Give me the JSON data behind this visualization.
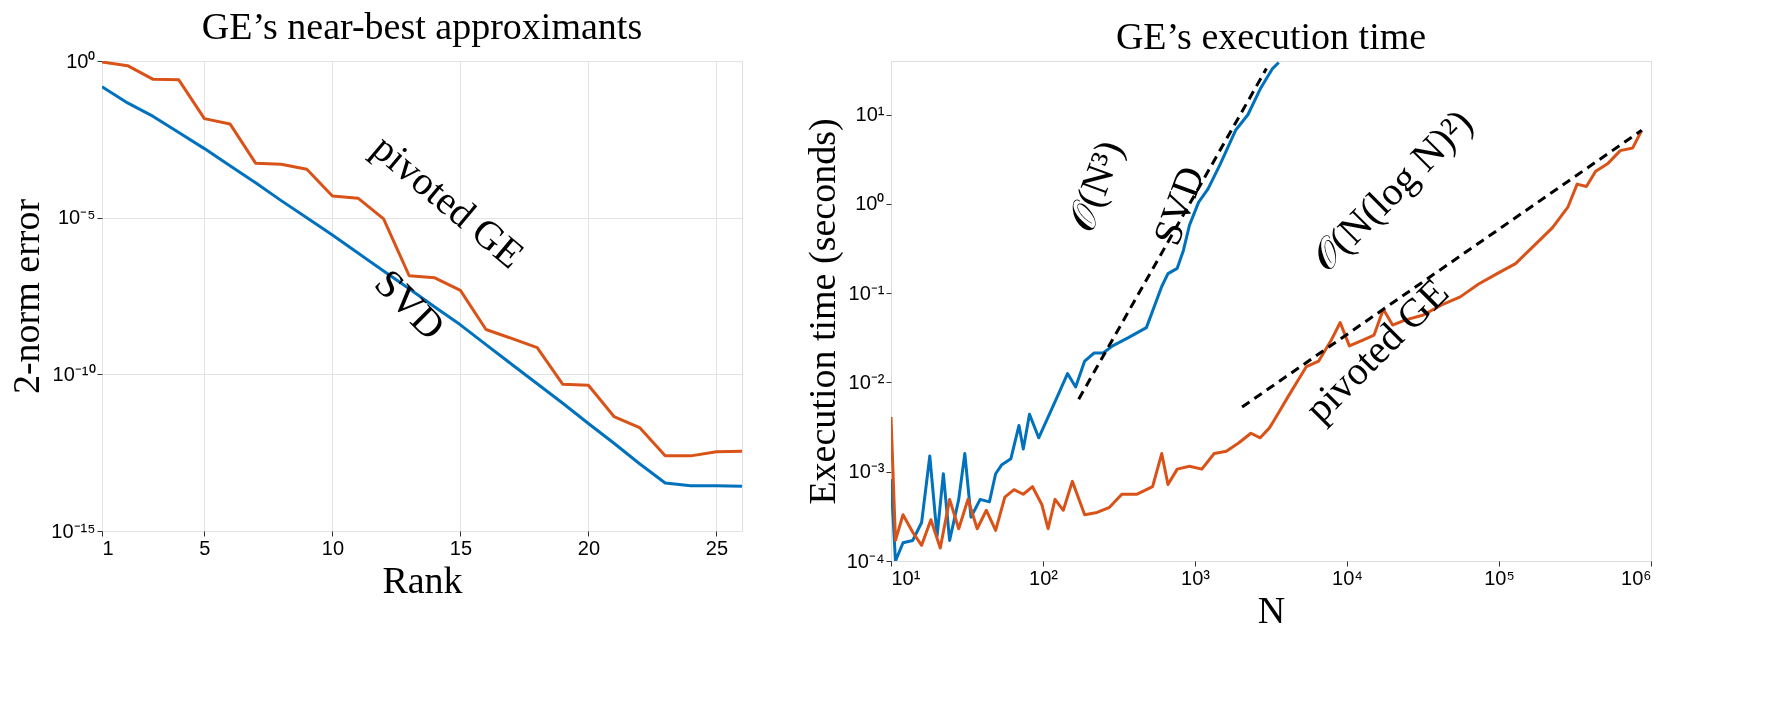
{
  "chart_data": [
    {
      "type": "line",
      "title": "GE’s near-best approximants",
      "xlabel": "Rank",
      "ylabel": "2-norm error",
      "log": "y",
      "grid": true,
      "xlim": [
        1,
        26
      ],
      "xticks": [
        1,
        5,
        10,
        15,
        20,
        25
      ],
      "ylim": [
        1e-15,
        1
      ],
      "yticks": [
        {
          "value": 1,
          "label": "10⁰"
        },
        {
          "value": 1e-05,
          "label": "10⁻⁵"
        },
        {
          "value": 1e-10,
          "label": "10⁻¹⁰"
        },
        {
          "value": 1e-15,
          "label": "10⁻¹⁵"
        }
      ],
      "x": [
        1,
        2,
        3,
        4,
        5,
        6,
        7,
        8,
        9,
        10,
        11,
        12,
        13,
        14,
        15,
        16,
        17,
        18,
        19,
        20,
        21,
        22,
        23,
        24,
        25,
        26
      ],
      "series": [
        {
          "color": "#d95319",
          "values": [
            0.93,
            0.71,
            0.26,
            0.25,
            0.0145,
            0.0098,
            0.00055,
            0.00051,
            0.00035,
            4.9e-05,
            4.2e-05,
            9.1e-06,
            1.4e-07,
            1.2e-07,
            4.8e-08,
            2.7e-09,
            1.4e-09,
            7.1e-10,
            4.8e-11,
            4.5e-11,
            4.5e-12,
            2e-12,
            2.5e-13,
            2.5e-13,
            3.4e-13,
            3.5e-13
          ]
        },
        {
          "color": "#0072bd",
          "values": [
            0.15,
            0.046,
            0.017,
            0.0052,
            0.0016,
            0.00045,
            0.00013,
            3.5e-05,
            1e-05,
            2.8e-06,
            7.4e-07,
            2e-07,
            5.4e-08,
            1.4e-08,
            3.8e-09,
            8.9e-10,
            2.1e-10,
            5e-11,
            1.2e-11,
            2.7e-12,
            6.3e-13,
            1.4e-13,
            3.4e-14,
            2.8e-14,
            2.8e-14,
            2.7e-14
          ]
        }
      ],
      "annotations": [
        "pivoted GE",
        "SVD"
      ]
    },
    {
      "type": "line",
      "title": "GE’s execution time",
      "xlabel": "N",
      "ylabel": "Execution time (seconds)",
      "log": "xy",
      "grid": false,
      "xlim": [
        10,
        1000000
      ],
      "xticks": [
        {
          "value": 10,
          "label": "10¹"
        },
        {
          "value": 100,
          "label": "10²"
        },
        {
          "value": 1000,
          "label": "10³"
        },
        {
          "value": 10000,
          "label": "10⁴"
        },
        {
          "value": 100000,
          "label": "10⁵"
        },
        {
          "value": 1000000,
          "label": "10⁶"
        }
      ],
      "ylim": [
        0.0001,
        40
      ],
      "yticks": [
        {
          "value": 0.0001,
          "label": "10⁻⁴"
        },
        {
          "value": 0.001,
          "label": "10⁻³"
        },
        {
          "value": 0.01,
          "label": "10⁻²"
        },
        {
          "value": 0.1,
          "label": "10⁻¹"
        },
        {
          "value": 1,
          "label": "10⁰"
        },
        {
          "value": 10,
          "label": "10¹"
        }
      ],
      "series": [
        {
          "color": "#0072bd",
          "x": [
            10,
            10.7,
            12.0,
            13.9,
            15.9,
            18.0,
            20.1,
            22.1,
            24.3,
            27.9,
            30.6,
            33.6,
            38.6,
            44.4,
            48.8,
            53.6,
            61.5,
            69.5,
            74.2,
            81.5,
            93.7,
            108,
            124,
            145,
            164,
            188,
            217,
            249,
            287,
            362,
            479,
            604,
            664,
            764,
            838,
            920,
            1057,
            1216,
            1466,
            1849,
            2228,
            2685,
            3236,
            3556
          ],
          "values": [
            0.00083,
            0.0001,
            0.00016,
            0.00017,
            0.00027,
            0.0015,
            0.00019,
            0.00095,
            0.00017,
            0.00049,
            0.0016,
            0.00031,
            0.00049,
            0.00046,
            0.00095,
            0.0012,
            0.0014,
            0.0033,
            0.0018,
            0.0044,
            0.0024,
            0.0041,
            0.0069,
            0.0126,
            0.0089,
            0.0174,
            0.0214,
            0.0214,
            0.0257,
            0.0316,
            0.0412,
            0.119,
            0.166,
            0.19,
            0.3,
            0.58,
            1.05,
            1.47,
            2.8,
            6.7,
            10,
            19.4,
            32.9,
            38.5
          ]
        },
        {
          "color": "#d95319",
          "x": [
            10,
            10.7,
            12.0,
            13.9,
            15.9,
            18.3,
            21.1,
            24.3,
            27.9,
            32.1,
            36.9,
            42.4,
            48.8,
            56.1,
            64.5,
            74.2,
            85.3,
            98.2,
            108,
            120,
            136,
            156,
            188,
            227,
            274,
            330,
            416,
            526,
            604,
            664,
            764,
            920,
            1109,
            1337,
            1607,
            1936,
            2333,
            2685,
            3090,
            3556,
            4088,
            4699,
            5408,
            6516,
            7852,
            9020,
            10370,
            12500,
            15070,
            17340,
            19950,
            24040,
            31770,
            41980,
            55590,
            73450,
            97230,
            128500,
            170200,
            224900,
            283800,
            326600,
            375800,
            432500,
            521200,
            628100,
            756800,
            868900
          ],
          "values": [
            0.0041,
            0.00017,
            0.00033,
            0.00021,
            0.00015,
            0.00029,
            0.00014,
            0.00049,
            0.00023,
            0.00049,
            0.00023,
            0.00037,
            0.00022,
            0.00052,
            0.00063,
            0.00056,
            0.00068,
            0.00043,
            0.00023,
            0.00049,
            0.00037,
            0.00078,
            0.00033,
            0.00035,
            0.0004,
            0.00056,
            0.00056,
            0.00068,
            0.0016,
            0.00072,
            0.00107,
            0.00115,
            0.00107,
            0.0016,
            0.0017,
            0.0021,
            0.0027,
            0.0024,
            0.0031,
            0.0046,
            0.0069,
            0.0102,
            0.0151,
            0.0174,
            0.0295,
            0.047,
            0.0257,
            0.0295,
            0.034,
            0.066,
            0.044,
            0.05,
            0.057,
            0.074,
            0.091,
            0.127,
            0.166,
            0.215,
            0.342,
            0.544,
            0.92,
            1.67,
            1.57,
            2.33,
            2.85,
            3.96,
            4.23,
            6.7
          ]
        },
        {
          "color": "#000000",
          "line_style": "dashed",
          "x": [
            171.8,
            2950
          ],
          "values": [
            0.0065,
            32.9
          ]
        },
        {
          "color": "#000000",
          "line_style": "dashed",
          "x": [
            2040,
            868900
          ],
          "values": [
            0.0053,
            6.7
          ]
        }
      ],
      "annotations": [
        "𝒪(N³)",
        "SVD",
        "𝒪(N(log N)²)",
        "pivoted GE"
      ]
    }
  ]
}
